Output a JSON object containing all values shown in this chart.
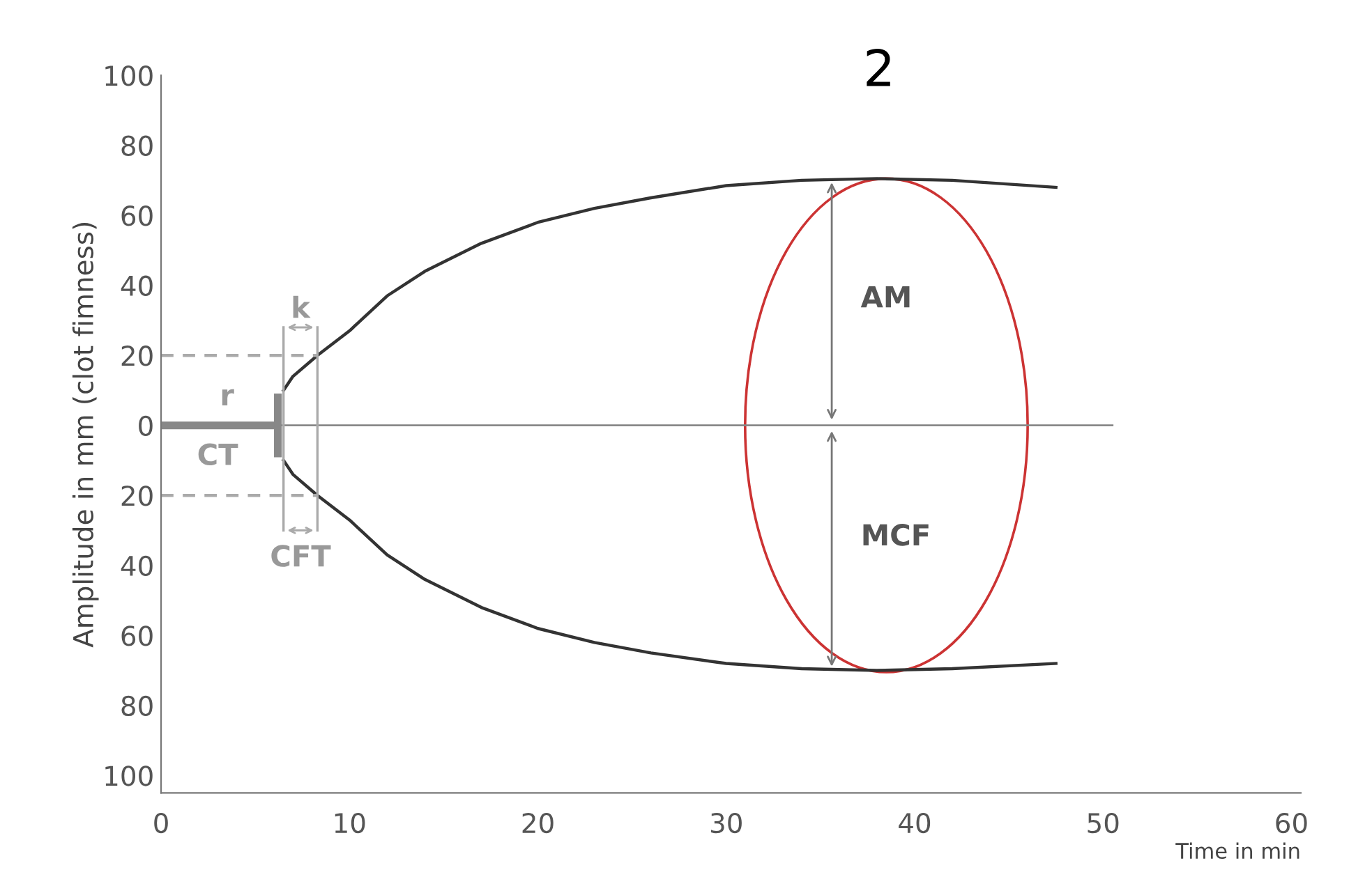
{
  "chart_data": {
    "type": "line",
    "title": "2",
    "xlabel": "Time in min",
    "ylabel": "Amplitude in mm (clot fimness)",
    "xlim": [
      0,
      60.5
    ],
    "xticks": [
      0,
      10,
      20,
      30,
      40,
      50,
      60
    ],
    "ylim": [
      -105,
      100
    ],
    "yticks": [
      {
        "value": -100,
        "label": "100"
      },
      {
        "value": -80,
        "label": "80"
      },
      {
        "value": -60,
        "label": "60"
      },
      {
        "value": -40,
        "label": "40"
      },
      {
        "value": -20,
        "label": "20"
      },
      0,
      20,
      40,
      60,
      80,
      100
    ],
    "grid": false,
    "marker": "none",
    "series": [
      {
        "color": "#333333",
        "x": [
          6.5,
          7,
          8.3,
          10,
          12,
          14,
          17,
          20,
          23,
          26,
          30,
          34,
          38,
          42,
          47.5
        ],
        "values": [
          10,
          14,
          20,
          27,
          37,
          44,
          52,
          58,
          62,
          65,
          68.5,
          70,
          70.5,
          70,
          68
        ]
      },
      {
        "color": "#333333",
        "x": [
          6.5,
          7,
          8.3,
          10,
          12,
          14,
          17,
          20,
          23,
          26,
          30,
          34,
          38,
          42,
          47.5
        ],
        "values": [
          -10,
          -14,
          -20,
          -27,
          -37,
          -44,
          -52,
          -58,
          -62,
          -65,
          -68,
          -69.5,
          -70,
          -69.5,
          -68
        ]
      },
      {
        "color": "#888888",
        "x": [
          0,
          6
        ],
        "values": [
          0,
          0
        ]
      },
      {
        "color": "#aaaaaa",
        "x": [
          0,
          8.3
        ],
        "values": [
          20,
          20
        ],
        "line_style": "dashed"
      },
      {
        "color": "#aaaaaa",
        "x": [
          0,
          8.3
        ],
        "values": [
          -20,
          -20
        ],
        "line_style": "dashed"
      }
    ],
    "ref_lines": [
      {
        "axis": "y",
        "value": 0,
        "color": "#888888"
      }
    ],
    "annotations": [
      "r",
      "CT",
      "k",
      "CFT",
      "AM",
      "MCF"
    ]
  }
}
